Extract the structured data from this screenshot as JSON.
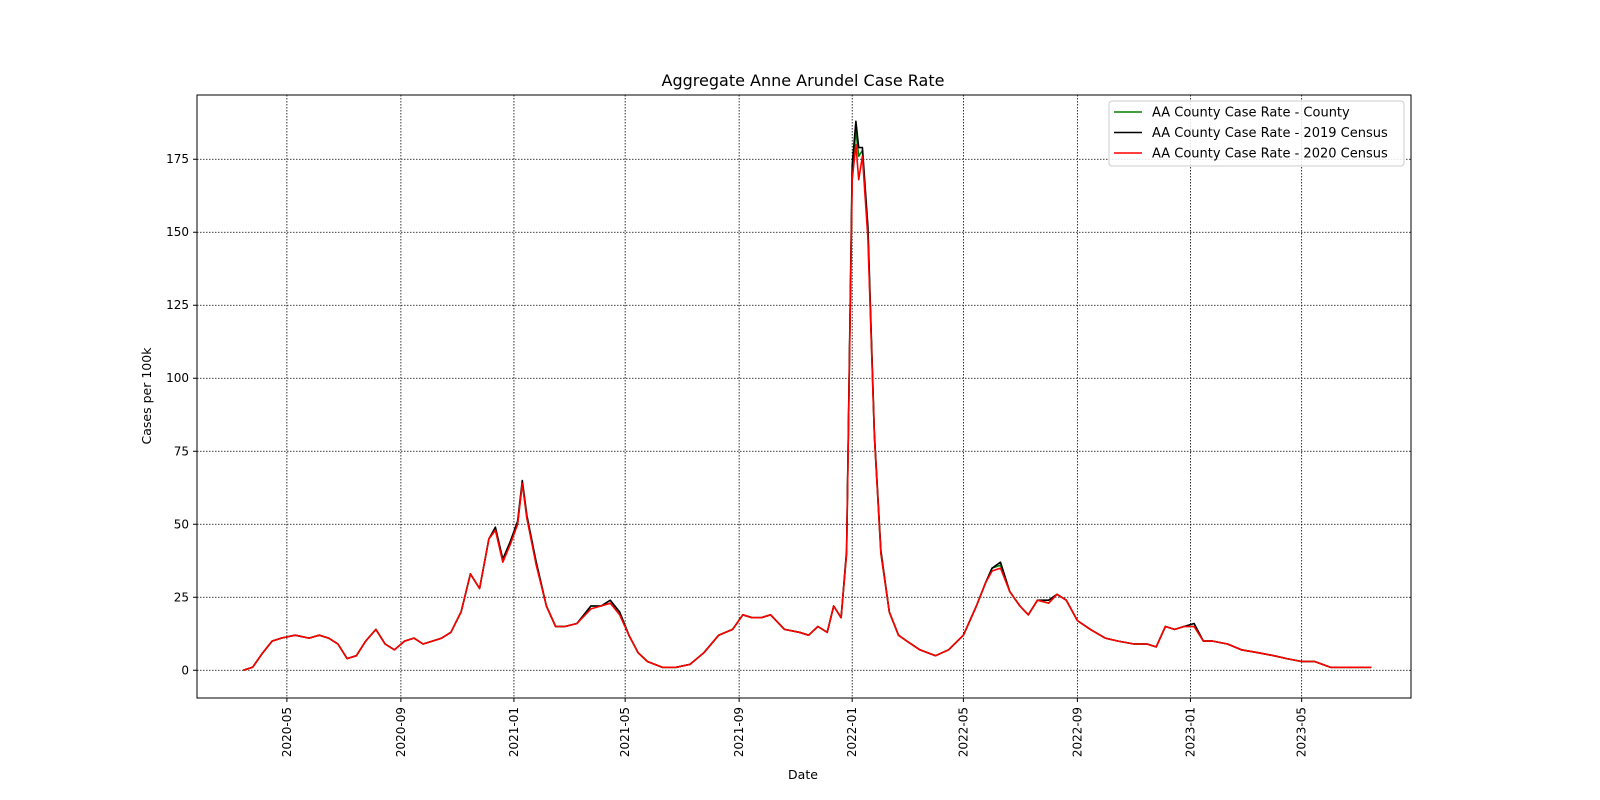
{
  "chart_data": {
    "type": "line",
    "title": "Aggregate Anne Arundel Case Rate",
    "xlabel": "Date",
    "ylabel": "Cases per 100k",
    "xlim": [
      "2020-01-25",
      "2023-08-27"
    ],
    "ylim": [
      -9.5,
      197
    ],
    "grid": true,
    "legend_position": "top-right",
    "x_ticks": [
      "2020-05",
      "2020-09",
      "2021-01",
      "2021-05",
      "2021-09",
      "2022-01",
      "2022-05",
      "2022-09",
      "2023-01",
      "2023-05"
    ],
    "y_ticks": [
      0,
      25,
      50,
      75,
      100,
      125,
      150,
      175
    ],
    "x": [
      "2020-03-15",
      "2020-03-25",
      "2020-04-05",
      "2020-04-15",
      "2020-04-25",
      "2020-05-10",
      "2020-05-25",
      "2020-06-05",
      "2020-06-15",
      "2020-06-25",
      "2020-07-05",
      "2020-07-15",
      "2020-07-25",
      "2020-08-05",
      "2020-08-15",
      "2020-08-25",
      "2020-09-05",
      "2020-09-15",
      "2020-09-25",
      "2020-10-05",
      "2020-10-15",
      "2020-10-25",
      "2020-11-05",
      "2020-11-15",
      "2020-11-25",
      "2020-12-05",
      "2020-12-12",
      "2020-12-20",
      "2020-12-28",
      "2021-01-05",
      "2021-01-10",
      "2021-01-15",
      "2021-01-25",
      "2021-02-05",
      "2021-02-15",
      "2021-02-25",
      "2021-03-10",
      "2021-03-25",
      "2021-04-05",
      "2021-04-15",
      "2021-04-25",
      "2021-05-05",
      "2021-05-15",
      "2021-05-25",
      "2021-06-10",
      "2021-06-25",
      "2021-07-10",
      "2021-07-25",
      "2021-08-10",
      "2021-08-25",
      "2021-09-05",
      "2021-09-15",
      "2021-09-25",
      "2021-10-05",
      "2021-10-20",
      "2021-11-05",
      "2021-11-15",
      "2021-11-25",
      "2021-12-05",
      "2021-12-12",
      "2021-12-20",
      "2021-12-26",
      "2022-01-01",
      "2022-01-05",
      "2022-01-08",
      "2022-01-12",
      "2022-01-18",
      "2022-01-25",
      "2022-02-01",
      "2022-02-10",
      "2022-02-20",
      "2022-03-01",
      "2022-03-15",
      "2022-04-01",
      "2022-04-15",
      "2022-05-01",
      "2022-05-15",
      "2022-05-25",
      "2022-06-01",
      "2022-06-10",
      "2022-06-20",
      "2022-07-01",
      "2022-07-10",
      "2022-07-20",
      "2022-08-01",
      "2022-08-10",
      "2022-08-20",
      "2022-09-01",
      "2022-09-15",
      "2022-10-01",
      "2022-10-15",
      "2022-11-01",
      "2022-11-15",
      "2022-11-25",
      "2022-12-05",
      "2022-12-15",
      "2022-12-25",
      "2023-01-05",
      "2023-01-15",
      "2023-01-25",
      "2023-02-10",
      "2023-02-25",
      "2023-03-15",
      "2023-04-01",
      "2023-04-15",
      "2023-05-01",
      "2023-05-15",
      "2023-06-01",
      "2023-06-15",
      "2023-07-01",
      "2023-07-15"
    ],
    "series": [
      {
        "name": "AA County Case Rate - County",
        "color": "#008000",
        "values": [
          0,
          1,
          6,
          10,
          11,
          12,
          11,
          12,
          11,
          9,
          4,
          5,
          10,
          14,
          9,
          7,
          10,
          11,
          9,
          10,
          11,
          13,
          20,
          33,
          28,
          45,
          48,
          38,
          44,
          50,
          64,
          52,
          37,
          22,
          15,
          15,
          16,
          22,
          22,
          23,
          20,
          12,
          6,
          3,
          1,
          1,
          2,
          6,
          12,
          14,
          19,
          18,
          18,
          19,
          14,
          13,
          12,
          15,
          13,
          22,
          18,
          40,
          170,
          185,
          176,
          178,
          150,
          80,
          40,
          20,
          12,
          10,
          7,
          5,
          7,
          12,
          22,
          30,
          35,
          36,
          27,
          22,
          19,
          24,
          23,
          26,
          24,
          17,
          14,
          11,
          10,
          9,
          9,
          8,
          15,
          14,
          15,
          15,
          10,
          10,
          9,
          7,
          6,
          5,
          4,
          3,
          3,
          1,
          1,
          1,
          1
        ]
      },
      {
        "name": "AA County Case Rate - 2019 Census",
        "color": "#000000",
        "values": [
          0,
          1,
          6,
          10,
          11,
          12,
          11,
          12,
          11,
          9,
          4,
          5,
          10,
          14,
          9,
          7,
          10,
          11,
          9,
          10,
          11,
          13,
          20,
          33,
          28,
          45,
          49,
          38,
          44,
          51,
          65,
          53,
          37,
          22,
          15,
          15,
          16,
          22,
          22,
          24,
          20,
          12,
          6,
          3,
          1,
          1,
          2,
          6,
          12,
          14,
          19,
          18,
          18,
          19,
          14,
          13,
          12,
          15,
          13,
          22,
          18,
          41,
          173,
          188,
          179,
          179,
          152,
          81,
          41,
          20,
          12,
          10,
          7,
          5,
          7,
          12,
          22,
          30,
          35,
          37,
          27,
          22,
          19,
          24,
          24,
          26,
          24,
          17,
          14,
          11,
          10,
          9,
          9,
          8,
          15,
          14,
          15,
          16,
          10,
          10,
          9,
          7,
          6,
          5,
          4,
          3,
          3,
          1,
          1,
          1,
          1
        ]
      },
      {
        "name": "AA County Case Rate - 2020 Census",
        "color": "#ff0000",
        "values": [
          0,
          1,
          6,
          10,
          11,
          12,
          11,
          12,
          11,
          9,
          4,
          5,
          10,
          14,
          9,
          7,
          10,
          11,
          9,
          10,
          11,
          13,
          20,
          33,
          28,
          45,
          48,
          37,
          43,
          50,
          64,
          52,
          36,
          22,
          15,
          15,
          16,
          21,
          22,
          23,
          19,
          12,
          6,
          3,
          1,
          1,
          2,
          6,
          12,
          14,
          19,
          18,
          18,
          19,
          14,
          13,
          12,
          15,
          13,
          22,
          18,
          40,
          168,
          180,
          168,
          176,
          148,
          80,
          40,
          20,
          12,
          10,
          7,
          5,
          7,
          12,
          22,
          30,
          34,
          35,
          27,
          22,
          19,
          24,
          23,
          26,
          24,
          17,
          14,
          11,
          10,
          9,
          9,
          8,
          15,
          14,
          15,
          15,
          10,
          10,
          9,
          7,
          6,
          5,
          4,
          3,
          3,
          1,
          1,
          1,
          1
        ]
      }
    ]
  }
}
